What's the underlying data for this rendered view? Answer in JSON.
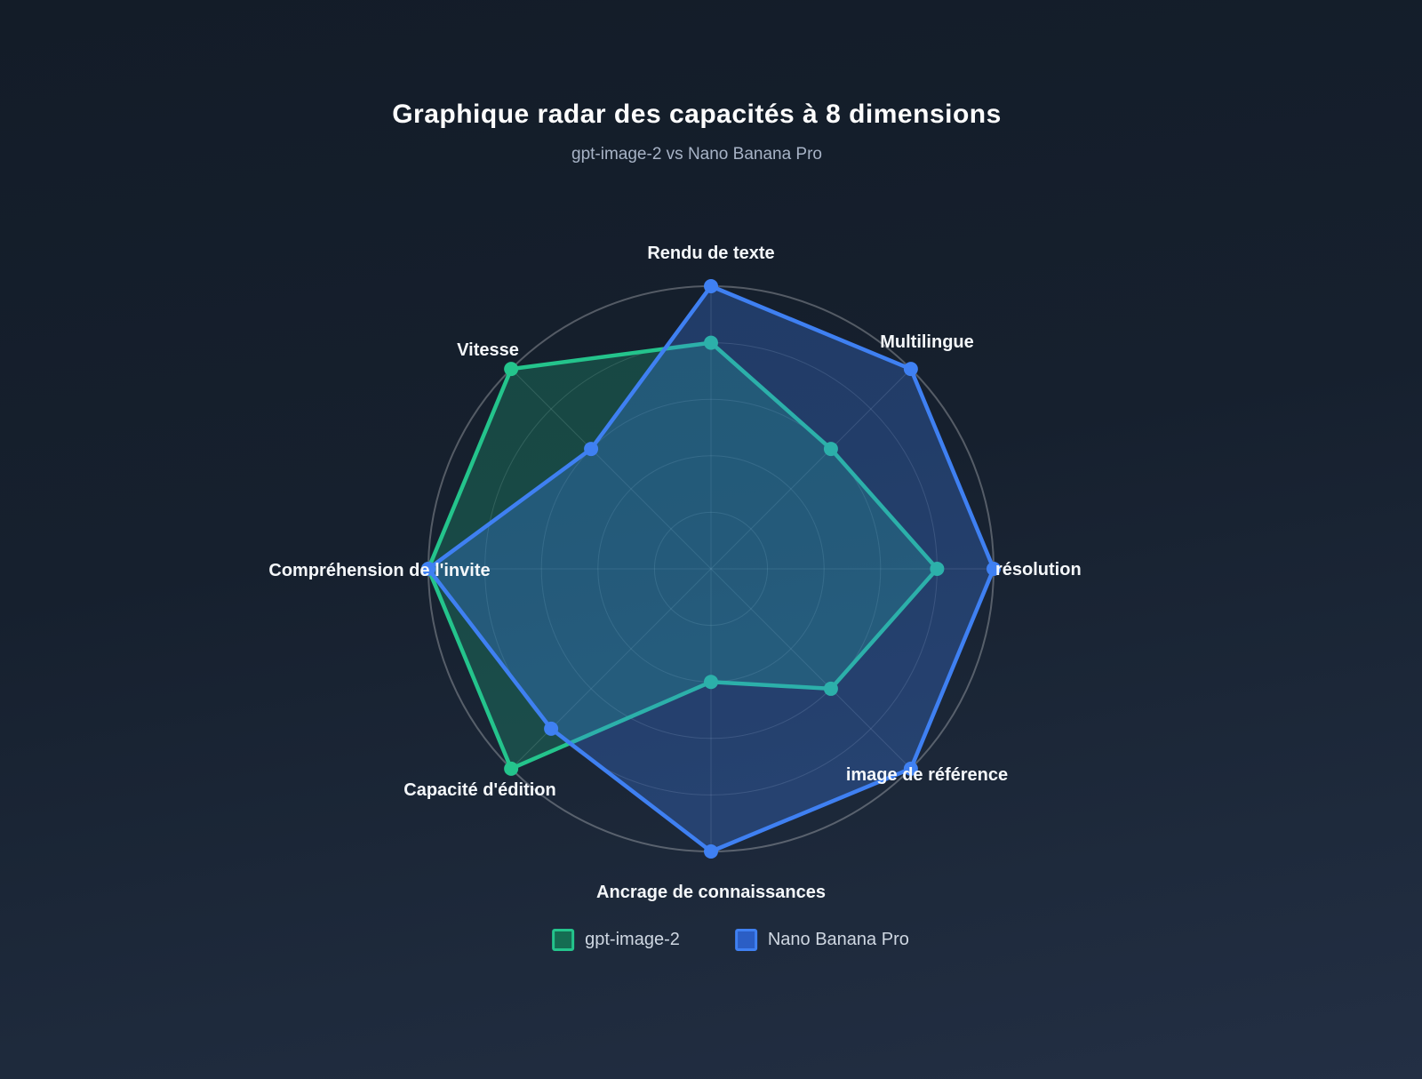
{
  "title": "Graphique radar des capacités à 8 dimensions",
  "subtitle": "gpt-image-2 vs Nano Banana Pro",
  "chart_data": {
    "type": "radar",
    "categories": [
      "Rendu de texte",
      "Multilingue",
      "résolution",
      "image de référence",
      "Ancrage de connaissances",
      "Capacité d'édition",
      "Compréhension de l'invite",
      "Vitesse"
    ],
    "series": [
      {
        "name": "gpt-image-2",
        "values": [
          8,
          6,
          8,
          6,
          4,
          10,
          10,
          10
        ],
        "line_color": "#24c48c",
        "fill_color": "rgba(33,197,139,0.25)",
        "swatch_fill": "#156d52"
      },
      {
        "name": "Nano Banana Pro",
        "values": [
          10,
          10,
          10,
          10,
          10,
          8,
          10,
          6
        ],
        "line_color": "#3f80f2",
        "fill_color": "rgba(63,128,242,0.30)",
        "swatch_fill": "#2b5ec5"
      }
    ],
    "max": 10,
    "rings": 5,
    "grid": "circular",
    "axis_start": "top",
    "direction": "clockwise",
    "legend_position": "bottom"
  },
  "colors": {
    "background_top": "#131c28",
    "background_bottom": "#232f44",
    "outer_ring": "rgba(255,255,255,0.27)",
    "grid_line": "rgba(255,255,255,0.15)",
    "axis_label": "#f4f7fa",
    "title": "#fdfdfd",
    "subtitle": "#a7b3c6",
    "legend_text": "#cfd7e2"
  }
}
